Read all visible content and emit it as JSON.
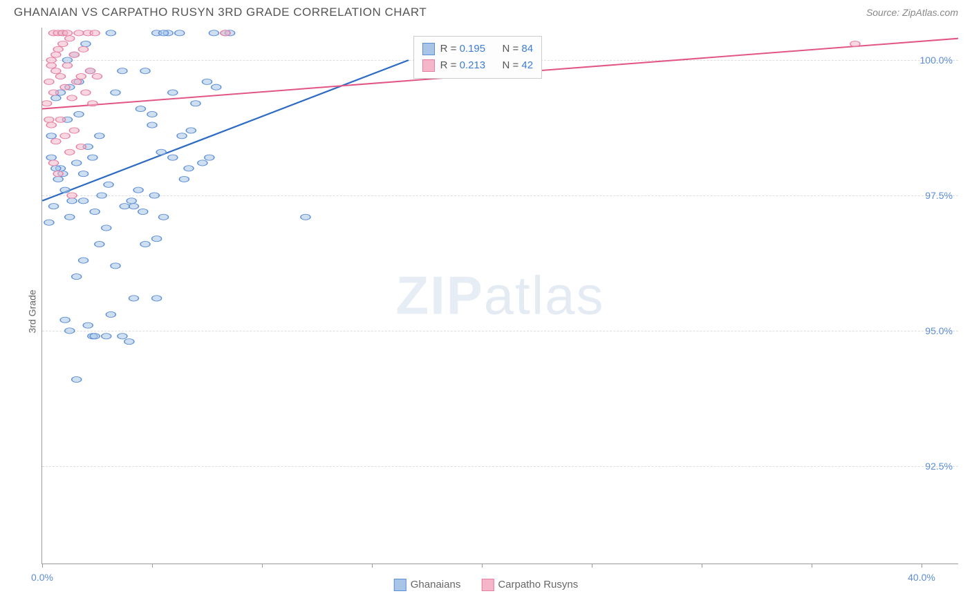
{
  "header": {
    "title": "GHANAIAN VS CARPATHO RUSYN 3RD GRADE CORRELATION CHART",
    "source": "Source: ZipAtlas.com"
  },
  "watermark": {
    "part1": "ZIP",
    "part2": "atlas"
  },
  "chart": {
    "type": "scatter",
    "ylabel": "3rd Grade",
    "xlim": [
      0,
      40
    ],
    "ylim": [
      90.7,
      100.6
    ],
    "ytick_values": [
      92.5,
      95.0,
      97.5,
      100.0
    ],
    "ytick_labels": [
      "92.5%",
      "95.0%",
      "97.5%",
      "100.0%"
    ],
    "xtick_positions_pct": [
      0,
      12,
      24,
      36,
      48,
      60,
      72,
      84,
      96
    ],
    "xtick_labels": {
      "left": "0.0%",
      "right": "40.0%"
    },
    "background_color": "#ffffff",
    "grid_color": "#dddddd",
    "axis_color": "#999999",
    "marker_radius": 7,
    "marker_stroke_width": 1.5,
    "line_width": 2,
    "stats_box": {
      "left_pct": 40.5,
      "top_pct": 1.5
    },
    "series": [
      {
        "name": "Ghanaians",
        "fill": "#a8c5e8",
        "stroke": "#5b8dd6",
        "fill_opacity": 0.55,
        "line_color": "#2d6bc4",
        "R": "0.195",
        "N": "84",
        "points": [
          [
            0.3,
            97.0
          ],
          [
            0.4,
            98.2
          ],
          [
            0.5,
            97.3
          ],
          [
            0.6,
            99.3
          ],
          [
            0.7,
            97.8
          ],
          [
            0.8,
            98.0
          ],
          [
            0.9,
            100.5
          ],
          [
            1.0,
            97.6
          ],
          [
            1.1,
            98.9
          ],
          [
            1.2,
            99.5
          ],
          [
            1.3,
            97.4
          ],
          [
            1.5,
            98.1
          ],
          [
            1.6,
            99.0
          ],
          [
            1.8,
            97.9
          ],
          [
            2.0,
            98.4
          ],
          [
            2.1,
            99.8
          ],
          [
            2.3,
            97.2
          ],
          [
            2.5,
            98.6
          ],
          [
            1.0,
            95.2
          ],
          [
            1.2,
            95.0
          ],
          [
            1.5,
            96.0
          ],
          [
            1.8,
            96.3
          ],
          [
            2.0,
            95.1
          ],
          [
            2.2,
            94.9
          ],
          [
            2.5,
            96.6
          ],
          [
            2.8,
            96.9
          ],
          [
            3.0,
            95.3
          ],
          [
            3.2,
            96.2
          ],
          [
            3.5,
            94.9
          ],
          [
            3.8,
            94.8
          ],
          [
            4.0,
            97.3
          ],
          [
            4.2,
            97.6
          ],
          [
            4.5,
            99.8
          ],
          [
            4.8,
            99.0
          ],
          [
            5.0,
            100.5
          ],
          [
            5.2,
            98.3
          ],
          [
            5.5,
            100.5
          ],
          [
            5.7,
            99.4
          ],
          [
            5.3,
            100.5
          ],
          [
            3.0,
            100.5
          ],
          [
            3.2,
            99.4
          ],
          [
            3.5,
            99.8
          ],
          [
            1.5,
            94.1
          ],
          [
            4.0,
            95.6
          ],
          [
            1.8,
            97.4
          ],
          [
            2.2,
            98.2
          ],
          [
            2.6,
            97.5
          ],
          [
            2.9,
            97.7
          ],
          [
            6.0,
            100.5
          ],
          [
            6.2,
            97.8
          ],
          [
            6.5,
            98.7
          ],
          [
            6.7,
            99.2
          ],
          [
            7.0,
            98.1
          ],
          [
            7.2,
            99.6
          ],
          [
            4.5,
            96.6
          ],
          [
            5.0,
            96.7
          ],
          [
            5.3,
            97.1
          ],
          [
            5.7,
            98.2
          ],
          [
            6.1,
            98.6
          ],
          [
            6.4,
            98.0
          ],
          [
            5.0,
            95.6
          ],
          [
            4.3,
            99.1
          ],
          [
            4.8,
            98.8
          ],
          [
            0.8,
            99.4
          ],
          [
            1.1,
            100.0
          ],
          [
            1.4,
            100.1
          ],
          [
            1.6,
            99.6
          ],
          [
            1.9,
            100.3
          ],
          [
            0.4,
            98.6
          ],
          [
            0.6,
            98.0
          ],
          [
            0.9,
            97.9
          ],
          [
            1.2,
            97.1
          ],
          [
            11.5,
            97.1
          ],
          [
            7.5,
            100.5
          ],
          [
            7.3,
            98.2
          ],
          [
            7.6,
            99.5
          ],
          [
            8.0,
            100.5
          ],
          [
            8.2,
            100.5
          ],
          [
            2.3,
            94.9
          ],
          [
            2.8,
            94.9
          ],
          [
            3.6,
            97.3
          ],
          [
            3.9,
            97.4
          ],
          [
            4.4,
            97.2
          ],
          [
            4.9,
            97.5
          ]
        ],
        "trend": {
          "x1": 0,
          "y1": 97.4,
          "x2": 16,
          "y2": 100.0
        }
      },
      {
        "name": "Carpatho Rusyns",
        "fill": "#f4b6c8",
        "stroke": "#e87ca0",
        "fill_opacity": 0.55,
        "line_color": "#e25584",
        "R": "0.213",
        "N": "42",
        "points": [
          [
            0.2,
            99.2
          ],
          [
            0.3,
            99.6
          ],
          [
            0.4,
            100.0
          ],
          [
            0.5,
            99.4
          ],
          [
            0.6,
            99.8
          ],
          [
            0.7,
            100.2
          ],
          [
            0.8,
            99.7
          ],
          [
            0.9,
            100.3
          ],
          [
            1.0,
            99.5
          ],
          [
            1.1,
            99.9
          ],
          [
            1.2,
            100.4
          ],
          [
            1.3,
            99.3
          ],
          [
            1.4,
            100.1
          ],
          [
            1.5,
            99.6
          ],
          [
            1.6,
            100.5
          ],
          [
            1.7,
            99.7
          ],
          [
            1.8,
            100.2
          ],
          [
            2.0,
            100.5
          ],
          [
            0.4,
            98.8
          ],
          [
            0.6,
            98.5
          ],
          [
            0.8,
            98.9
          ],
          [
            1.0,
            98.6
          ],
          [
            1.2,
            98.3
          ],
          [
            1.4,
            98.7
          ],
          [
            0.3,
            98.9
          ],
          [
            0.5,
            100.5
          ],
          [
            0.7,
            100.5
          ],
          [
            0.9,
            100.5
          ],
          [
            1.1,
            100.5
          ],
          [
            2.3,
            100.5
          ],
          [
            2.1,
            99.8
          ],
          [
            0.5,
            98.1
          ],
          [
            0.7,
            97.9
          ],
          [
            2.4,
            99.7
          ],
          [
            1.9,
            99.4
          ],
          [
            2.2,
            99.2
          ],
          [
            0.4,
            99.9
          ],
          [
            0.6,
            100.1
          ],
          [
            35.5,
            100.3
          ],
          [
            8.0,
            100.5
          ],
          [
            1.3,
            97.5
          ],
          [
            1.7,
            98.4
          ]
        ],
        "trend": {
          "x1": 0,
          "y1": 99.1,
          "x2": 40,
          "y2": 100.4
        }
      }
    ]
  },
  "legend": {
    "items": [
      {
        "label": "Ghanaians",
        "fill": "#a8c5e8",
        "stroke": "#5b8dd6"
      },
      {
        "label": "Carpatho Rusyns",
        "fill": "#f4b6c8",
        "stroke": "#e87ca0"
      }
    ]
  }
}
